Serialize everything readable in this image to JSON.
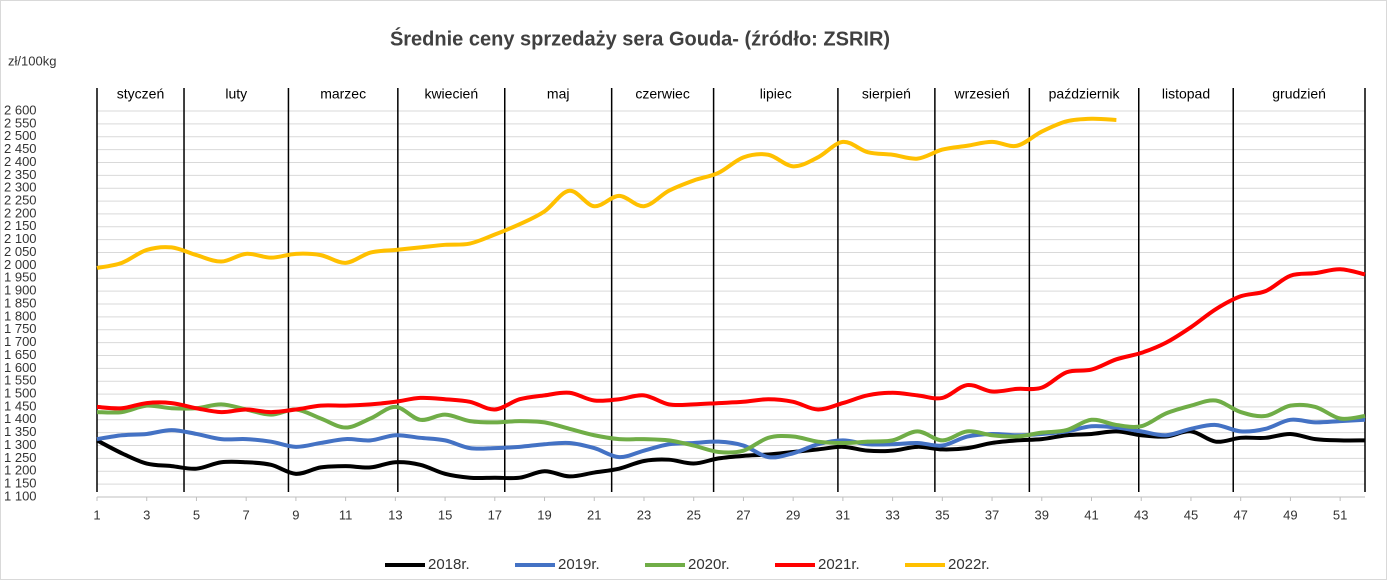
{
  "chart_data": {
    "type": "line",
    "title": "Średnie ceny sprzedaży sera Gouda- (źródło: ZSRIR)",
    "y_label": "zł/100kg",
    "x": [
      1,
      2,
      3,
      4,
      5,
      6,
      7,
      8,
      9,
      10,
      11,
      12,
      13,
      14,
      15,
      16,
      17,
      18,
      19,
      20,
      21,
      22,
      23,
      24,
      25,
      26,
      27,
      28,
      29,
      30,
      31,
      32,
      33,
      34,
      35,
      36,
      37,
      38,
      39,
      40,
      41,
      42,
      43,
      44,
      45,
      46,
      47,
      48,
      49,
      50,
      51,
      52
    ],
    "xlim": [
      1,
      52
    ],
    "xticks": [
      1,
      3,
      5,
      7,
      9,
      11,
      13,
      15,
      17,
      19,
      21,
      23,
      25,
      27,
      29,
      31,
      33,
      35,
      37,
      39,
      41,
      43,
      45,
      47,
      49,
      51
    ],
    "ylim": [
      1100,
      2600
    ],
    "yticks": [
      {
        "value": 1100,
        "label": "1 100"
      },
      {
        "value": 1150,
        "label": "1 150"
      },
      {
        "value": 1200,
        "label": "1 200"
      },
      {
        "value": 1250,
        "label": "1 250"
      },
      {
        "value": 1300,
        "label": "1 300"
      },
      {
        "value": 1350,
        "label": "1 350"
      },
      {
        "value": 1400,
        "label": "1 400"
      },
      {
        "value": 1450,
        "label": "1 450"
      },
      {
        "value": 1500,
        "label": "1 500"
      },
      {
        "value": 1550,
        "label": "1 550"
      },
      {
        "value": 1600,
        "label": "1 600"
      },
      {
        "value": 1650,
        "label": "1 650"
      },
      {
        "value": 1700,
        "label": "1 700"
      },
      {
        "value": 1750,
        "label": "1 750"
      },
      {
        "value": 1800,
        "label": "1 800"
      },
      {
        "value": 1850,
        "label": "1 850"
      },
      {
        "value": 1900,
        "label": "1 900"
      },
      {
        "value": 1950,
        "label": "1 950"
      },
      {
        "value": 2000,
        "label": "2 000"
      },
      {
        "value": 2050,
        "label": "2 050"
      },
      {
        "value": 2100,
        "label": "2 100"
      },
      {
        "value": 2150,
        "label": "2 150"
      },
      {
        "value": 2200,
        "label": "2 200"
      },
      {
        "value": 2250,
        "label": "2 250"
      },
      {
        "value": 2300,
        "label": "2 300"
      },
      {
        "value": 2350,
        "label": "2 350"
      },
      {
        "value": 2400,
        "label": "2 400"
      },
      {
        "value": 2450,
        "label": "2 450"
      },
      {
        "value": 2500,
        "label": "2 500"
      },
      {
        "value": 2550,
        "label": "2 550"
      },
      {
        "value": 2600,
        "label": "2 600"
      }
    ],
    "grid": true,
    "legend": "bottom",
    "months": [
      "styczeń",
      "luty",
      "marzec",
      "kwiecień",
      "maj",
      "czerwiec",
      "lipiec",
      "sierpień",
      "wrzesień",
      "październik",
      "listopad",
      "grudzień"
    ],
    "month_bounds": [
      1,
      4.5,
      8.7,
      13.1,
      17.4,
      21.7,
      25.8,
      30.8,
      34.7,
      38.5,
      42.9,
      46.7,
      52
    ],
    "series": [
      {
        "name": "2018r.",
        "color": "#000000",
        "values": [
          1320,
          1270,
          1230,
          1220,
          1210,
          1235,
          1235,
          1225,
          1190,
          1215,
          1220,
          1215,
          1235,
          1225,
          1190,
          1175,
          1175,
          1175,
          1200,
          1180,
          1195,
          1210,
          1240,
          1245,
          1230,
          1250,
          1260,
          1265,
          1275,
          1285,
          1295,
          1280,
          1280,
          1295,
          1285,
          1290,
          1310,
          1320,
          1325,
          1340,
          1345,
          1355,
          1340,
          1335,
          1355,
          1315,
          1330,
          1330,
          1345,
          1325,
          1320,
          1320
        ]
      },
      {
        "name": "2019r.",
        "color": "#4472c4",
        "values": [
          1325,
          1340,
          1345,
          1360,
          1345,
          1325,
          1325,
          1315,
          1295,
          1310,
          1325,
          1320,
          1340,
          1330,
          1320,
          1290,
          1290,
          1295,
          1305,
          1310,
          1290,
          1255,
          1280,
          1305,
          1310,
          1315,
          1300,
          1255,
          1270,
          1305,
          1320,
          1305,
          1305,
          1310,
          1300,
          1335,
          1345,
          1340,
          1345,
          1355,
          1375,
          1370,
          1355,
          1340,
          1365,
          1380,
          1355,
          1365,
          1400,
          1390,
          1395,
          1400
        ]
      },
      {
        "name": "2020r.",
        "color": "#70ad47",
        "values": [
          1430,
          1430,
          1455,
          1445,
          1445,
          1460,
          1440,
          1420,
          1440,
          1405,
          1370,
          1405,
          1450,
          1400,
          1420,
          1395,
          1390,
          1395,
          1390,
          1365,
          1340,
          1325,
          1325,
          1320,
          1300,
          1275,
          1280,
          1330,
          1335,
          1315,
          1310,
          1315,
          1320,
          1355,
          1320,
          1355,
          1340,
          1335,
          1350,
          1360,
          1400,
          1380,
          1375,
          1425,
          1455,
          1475,
          1430,
          1415,
          1455,
          1450,
          1405,
          1415
        ]
      },
      {
        "name": "2021r.",
        "color": "#ff0000",
        "values": [
          1450,
          1445,
          1465,
          1465,
          1445,
          1430,
          1440,
          1430,
          1440,
          1455,
          1455,
          1460,
          1470,
          1485,
          1480,
          1470,
          1440,
          1480,
          1495,
          1505,
          1475,
          1480,
          1495,
          1460,
          1460,
          1465,
          1470,
          1480,
          1470,
          1440,
          1465,
          1495,
          1505,
          1495,
          1485,
          1535,
          1510,
          1520,
          1525,
          1585,
          1595,
          1635,
          1660,
          1700,
          1760,
          1830,
          1880,
          1900,
          1960,
          1970,
          1985,
          1965
        ]
      },
      {
        "name": "2022r.",
        "color": "#ffc000",
        "values": [
          1990,
          2010,
          2060,
          2070,
          2040,
          2015,
          2045,
          2030,
          2045,
          2040,
          2010,
          2050,
          2060,
          2070,
          2080,
          2085,
          2120,
          2160,
          2210,
          2290,
          2230,
          2270,
          2230,
          2290,
          2330,
          2360,
          2420,
          2430,
          2385,
          2420,
          2480,
          2440,
          2430,
          2415,
          2450,
          2465,
          2480,
          2465,
          2520,
          2560,
          2570,
          2565,
          null,
          null,
          null,
          null,
          null,
          null,
          null,
          null,
          null,
          null
        ]
      }
    ]
  }
}
